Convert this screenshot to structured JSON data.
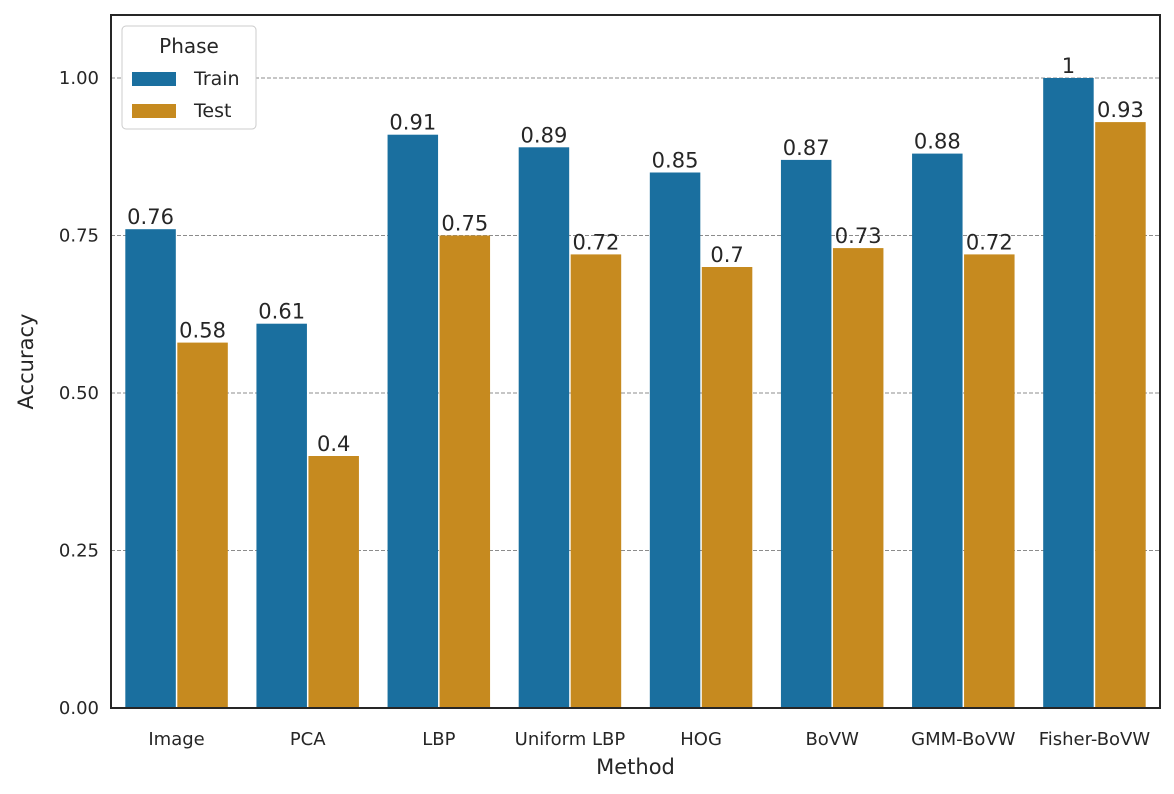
{
  "chart_data": {
    "type": "bar",
    "title": "",
    "xlabel": "Method",
    "ylabel": "Accuracy",
    "ylim": [
      0,
      1.1
    ],
    "yticks": [
      0.0,
      0.25,
      0.5,
      0.75,
      1.0
    ],
    "ytick_labels": [
      "0.00",
      "0.25",
      "0.50",
      "0.75",
      "1.00"
    ],
    "grid": true,
    "legend_title": "Phase",
    "legend_position": "top-left",
    "categories": [
      "Image",
      "PCA",
      "LBP",
      "Uniform LBP",
      "HOG",
      "BoVW",
      "GMM-BoVW",
      "Fisher-BoVW"
    ],
    "series": [
      {
        "name": "Train",
        "color": "#1a6f9f",
        "values": [
          0.76,
          0.61,
          0.91,
          0.89,
          0.85,
          0.87,
          0.88,
          1
        ],
        "labels": [
          "0.76",
          "0.61",
          "0.91",
          "0.89",
          "0.85",
          "0.87",
          "0.88",
          "1"
        ]
      },
      {
        "name": "Test",
        "color": "#c68a1f",
        "values": [
          0.58,
          0.4,
          0.75,
          0.72,
          0.7,
          0.73,
          0.72,
          0.93
        ],
        "labels": [
          "0.58",
          "0.4",
          "0.75",
          "0.72",
          "0.7",
          "0.73",
          "0.72",
          "0.93"
        ]
      }
    ]
  }
}
